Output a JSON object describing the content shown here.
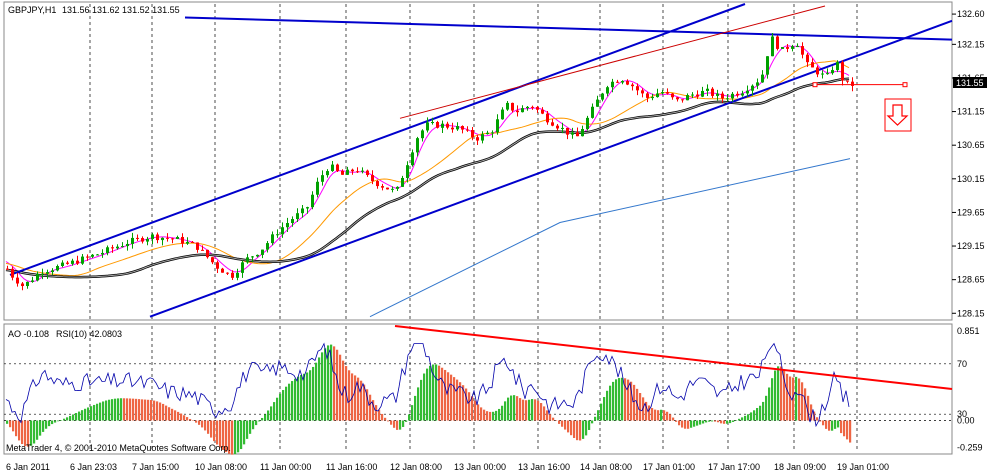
{
  "header": {
    "symbol": "GBPJPY,H1",
    "ohlc": "131.56 131.62 131.52 131.55"
  },
  "indicator_header": {
    "ao_label": "AO -0.108",
    "rsi_label": "RSI(10) 42.0803"
  },
  "copyright": "MetaTrader 4, © 2001-2010 MetaQuotes Software Corp.",
  "current_price_label": "131.55",
  "colors": {
    "bull_candle": "#00a000",
    "bear_candle": "#ff0000",
    "channel": "#0000cc",
    "ma_magenta": "#ff00ff",
    "ma_orange": "#ff9900",
    "ma_grey": "#808080",
    "ma_blue": "#3377cc",
    "ao_up": "#33bb33",
    "ao_down": "#ee6644",
    "rsi": "#0000aa",
    "trend_red": "#ff0000",
    "arrow": "#ff0000"
  },
  "chart_data": [
    {
      "type": "candlestick",
      "price_axis_ticks": [
        "132.60",
        "132.15",
        "131.65",
        "131.15",
        "130.65",
        "130.15",
        "129.65",
        "129.15",
        "128.65",
        "128.15"
      ],
      "time_axis_ticks": [
        "6 Jan 2011",
        "6 Jan 23:03",
        "7 Jan 15:00",
        "10 Jan 08:00",
        "11 Jan 00:00",
        "11 Jan 16:00",
        "12 Jan 08:00",
        "13 Jan 00:00",
        "13 Jan 16:00",
        "14 Jan 08:00",
        "17 Jan 01:00",
        "17 Jan 17:00",
        "18 Jan 09:00",
        "19 Jan 01:00"
      ],
      "ylim": [
        128.05,
        132.75
      ],
      "price_path": [
        [
          0,
          128.95
        ],
        [
          10,
          128.72
        ],
        [
          22,
          128.55
        ],
        [
          40,
          128.78
        ],
        [
          60,
          128.85
        ],
        [
          80,
          128.95
        ],
        [
          100,
          129.05
        ],
        [
          125,
          129.2
        ],
        [
          150,
          129.3
        ],
        [
          175,
          129.25
        ],
        [
          195,
          129.15
        ],
        [
          215,
          128.85
        ],
        [
          230,
          128.7
        ],
        [
          245,
          128.95
        ],
        [
          260,
          129.1
        ],
        [
          275,
          129.35
        ],
        [
          290,
          129.55
        ],
        [
          305,
          129.7
        ],
        [
          318,
          130.15
        ],
        [
          328,
          130.35
        ],
        [
          340,
          130.2
        ],
        [
          355,
          130.3
        ],
        [
          368,
          130.15
        ],
        [
          380,
          130.05
        ],
        [
          395,
          129.95
        ],
        [
          405,
          130.35
        ],
        [
          415,
          130.75
        ],
        [
          425,
          130.95
        ],
        [
          440,
          130.95
        ],
        [
          458,
          130.9
        ],
        [
          475,
          130.75
        ],
        [
          490,
          130.85
        ],
        [
          505,
          131.25
        ],
        [
          515,
          131.15
        ],
        [
          530,
          131.25
        ],
        [
          545,
          131.05
        ],
        [
          560,
          130.9
        ],
        [
          575,
          130.75
        ],
        [
          590,
          131.15
        ],
        [
          605,
          131.55
        ],
        [
          620,
          131.65
        ],
        [
          630,
          131.55
        ],
        [
          645,
          131.35
        ],
        [
          660,
          131.45
        ],
        [
          675,
          131.3
        ],
        [
          690,
          131.4
        ],
        [
          705,
          131.45
        ],
        [
          720,
          131.35
        ],
        [
          740,
          131.45
        ],
        [
          760,
          131.65
        ],
        [
          770,
          132.25
        ],
        [
          780,
          132.05
        ],
        [
          795,
          132.2
        ],
        [
          805,
          131.85
        ],
        [
          815,
          131.75
        ],
        [
          825,
          131.65
        ],
        [
          835,
          131.9
        ],
        [
          843,
          131.55
        ],
        [
          851,
          131.55
        ]
      ]
    },
    {
      "type": "bar",
      "name": "AO",
      "value_axis_ticks": [
        "0.851",
        "0.00",
        "-0.259"
      ],
      "ylim": [
        -0.3,
        0.9
      ]
    },
    {
      "type": "line",
      "name": "RSI(10)",
      "levels": [
        "70",
        "30"
      ],
      "ylim": [
        0,
        100
      ]
    }
  ]
}
